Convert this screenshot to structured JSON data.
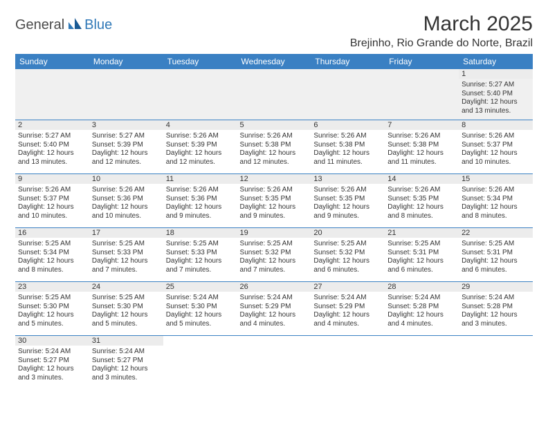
{
  "logo": {
    "part1": "General",
    "part2": "Blue"
  },
  "title": "March 2025",
  "location": "Brejinho, Rio Grande do Norte, Brazil",
  "colors": {
    "header_bg": "#3a80c3",
    "header_text": "#ffffff",
    "grid_line": "#3a80c3",
    "daynum_bg": "#ececec",
    "logo_blue": "#2f78b7",
    "logo_gray": "#4a4a4a"
  },
  "day_headers": [
    "Sunday",
    "Monday",
    "Tuesday",
    "Wednesday",
    "Thursday",
    "Friday",
    "Saturday"
  ],
  "weeks": [
    [
      null,
      null,
      null,
      null,
      null,
      null,
      {
        "n": "1",
        "sr": "5:27 AM",
        "ss": "5:40 PM",
        "dl": "12 hours and 13 minutes."
      }
    ],
    [
      {
        "n": "2",
        "sr": "5:27 AM",
        "ss": "5:40 PM",
        "dl": "12 hours and 13 minutes."
      },
      {
        "n": "3",
        "sr": "5:27 AM",
        "ss": "5:39 PM",
        "dl": "12 hours and 12 minutes."
      },
      {
        "n": "4",
        "sr": "5:26 AM",
        "ss": "5:39 PM",
        "dl": "12 hours and 12 minutes."
      },
      {
        "n": "5",
        "sr": "5:26 AM",
        "ss": "5:38 PM",
        "dl": "12 hours and 12 minutes."
      },
      {
        "n": "6",
        "sr": "5:26 AM",
        "ss": "5:38 PM",
        "dl": "12 hours and 11 minutes."
      },
      {
        "n": "7",
        "sr": "5:26 AM",
        "ss": "5:38 PM",
        "dl": "12 hours and 11 minutes."
      },
      {
        "n": "8",
        "sr": "5:26 AM",
        "ss": "5:37 PM",
        "dl": "12 hours and 10 minutes."
      }
    ],
    [
      {
        "n": "9",
        "sr": "5:26 AM",
        "ss": "5:37 PM",
        "dl": "12 hours and 10 minutes."
      },
      {
        "n": "10",
        "sr": "5:26 AM",
        "ss": "5:36 PM",
        "dl": "12 hours and 10 minutes."
      },
      {
        "n": "11",
        "sr": "5:26 AM",
        "ss": "5:36 PM",
        "dl": "12 hours and 9 minutes."
      },
      {
        "n": "12",
        "sr": "5:26 AM",
        "ss": "5:35 PM",
        "dl": "12 hours and 9 minutes."
      },
      {
        "n": "13",
        "sr": "5:26 AM",
        "ss": "5:35 PM",
        "dl": "12 hours and 9 minutes."
      },
      {
        "n": "14",
        "sr": "5:26 AM",
        "ss": "5:35 PM",
        "dl": "12 hours and 8 minutes."
      },
      {
        "n": "15",
        "sr": "5:26 AM",
        "ss": "5:34 PM",
        "dl": "12 hours and 8 minutes."
      }
    ],
    [
      {
        "n": "16",
        "sr": "5:25 AM",
        "ss": "5:34 PM",
        "dl": "12 hours and 8 minutes."
      },
      {
        "n": "17",
        "sr": "5:25 AM",
        "ss": "5:33 PM",
        "dl": "12 hours and 7 minutes."
      },
      {
        "n": "18",
        "sr": "5:25 AM",
        "ss": "5:33 PM",
        "dl": "12 hours and 7 minutes."
      },
      {
        "n": "19",
        "sr": "5:25 AM",
        "ss": "5:32 PM",
        "dl": "12 hours and 7 minutes."
      },
      {
        "n": "20",
        "sr": "5:25 AM",
        "ss": "5:32 PM",
        "dl": "12 hours and 6 minutes."
      },
      {
        "n": "21",
        "sr": "5:25 AM",
        "ss": "5:31 PM",
        "dl": "12 hours and 6 minutes."
      },
      {
        "n": "22",
        "sr": "5:25 AM",
        "ss": "5:31 PM",
        "dl": "12 hours and 6 minutes."
      }
    ],
    [
      {
        "n": "23",
        "sr": "5:25 AM",
        "ss": "5:30 PM",
        "dl": "12 hours and 5 minutes."
      },
      {
        "n": "24",
        "sr": "5:25 AM",
        "ss": "5:30 PM",
        "dl": "12 hours and 5 minutes."
      },
      {
        "n": "25",
        "sr": "5:24 AM",
        "ss": "5:30 PM",
        "dl": "12 hours and 5 minutes."
      },
      {
        "n": "26",
        "sr": "5:24 AM",
        "ss": "5:29 PM",
        "dl": "12 hours and 4 minutes."
      },
      {
        "n": "27",
        "sr": "5:24 AM",
        "ss": "5:29 PM",
        "dl": "12 hours and 4 minutes."
      },
      {
        "n": "28",
        "sr": "5:24 AM",
        "ss": "5:28 PM",
        "dl": "12 hours and 4 minutes."
      },
      {
        "n": "29",
        "sr": "5:24 AM",
        "ss": "5:28 PM",
        "dl": "12 hours and 3 minutes."
      }
    ],
    [
      {
        "n": "30",
        "sr": "5:24 AM",
        "ss": "5:27 PM",
        "dl": "12 hours and 3 minutes."
      },
      {
        "n": "31",
        "sr": "5:24 AM",
        "ss": "5:27 PM",
        "dl": "12 hours and 3 minutes."
      },
      null,
      null,
      null,
      null,
      null
    ]
  ],
  "labels": {
    "sunrise": "Sunrise:",
    "sunset": "Sunset:",
    "daylight": "Daylight:"
  }
}
